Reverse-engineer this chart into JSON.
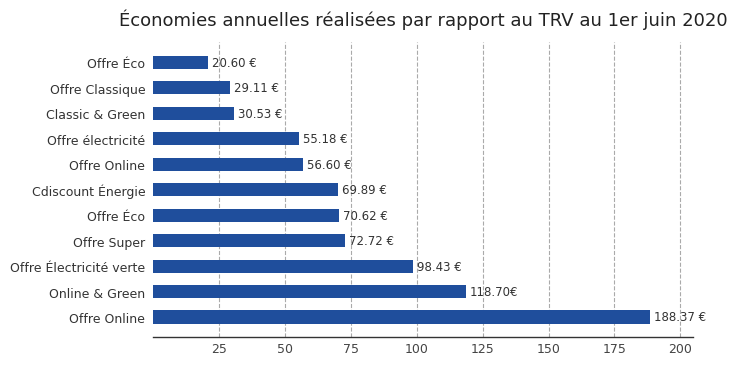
{
  "title": "Économies annuelles réalisées par rapport au TRV au 1er juin 2020",
  "labels": [
    "Offre Éco",
    "Offre Classique",
    "Classic & Green",
    "Offre électricité",
    "Offre Online",
    "Cdiscount Énergie",
    "Offre Éco",
    "Offre Super",
    "Offre Électricité verte",
    "Online & Green",
    "Offre Online"
  ],
  "values": [
    20.6,
    29.11,
    30.53,
    55.18,
    56.6,
    69.89,
    70.62,
    72.72,
    98.43,
    118.7,
    188.37
  ],
  "value_labels": [
    "20.60 €",
    "29.11 €",
    "30.53 €",
    "55.18 €",
    "56.60 €",
    "69.89 €",
    "70.62 €",
    "72.72 €",
    "98.43 €",
    "118.70€",
    "188.37 €"
  ],
  "bar_color": "#1f4e9c",
  "background_color": "#ffffff",
  "xlim": [
    0,
    205
  ],
  "xticks": [
    25,
    50,
    75,
    100,
    125,
    150,
    175,
    200
  ],
  "title_fontsize": 13,
  "bar_fontsize": 8.5,
  "label_fontsize": 9,
  "tick_fontsize": 9,
  "bar_height": 0.52
}
